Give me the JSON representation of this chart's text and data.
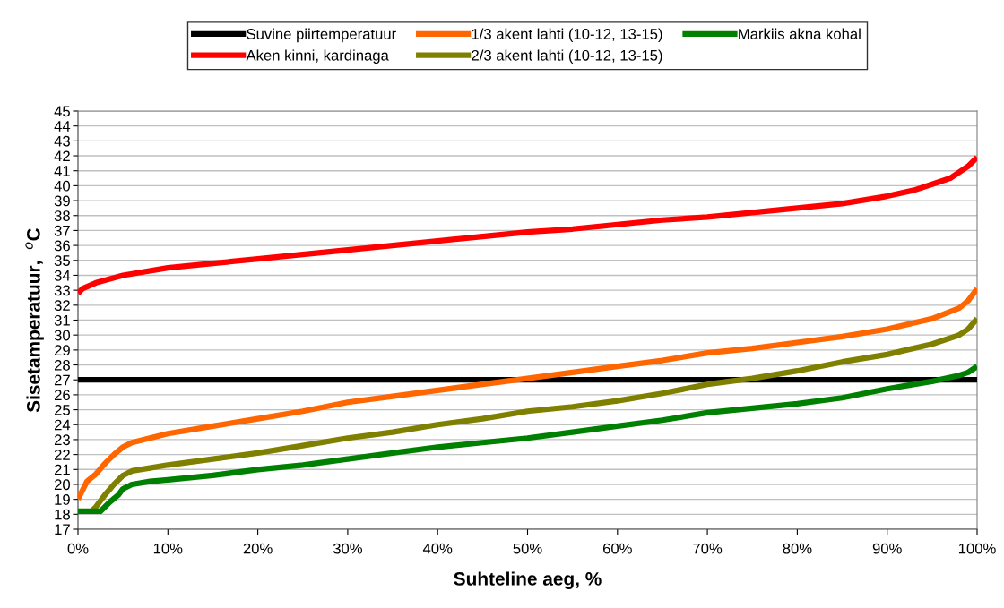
{
  "chart_data": {
    "type": "line",
    "xlabel": "Suhteline aeg, %",
    "ylabel": "Sisetamperatuur,  $^{o}$C",
    "xlim": [
      0,
      100
    ],
    "ylim": [
      17,
      45
    ],
    "xticks": [
      {
        "value": 0,
        "label": "0%"
      },
      {
        "value": 10,
        "label": "10%"
      },
      {
        "value": 20,
        "label": "20%"
      },
      {
        "value": 30,
        "label": "30%"
      },
      {
        "value": 40,
        "label": "40%"
      },
      {
        "value": 50,
        "label": "50%"
      },
      {
        "value": 60,
        "label": "60%"
      },
      {
        "value": 70,
        "label": "70%"
      },
      {
        "value": 80,
        "label": "80%"
      },
      {
        "value": 90,
        "label": "90%"
      },
      {
        "value": 100,
        "label": "100%"
      }
    ],
    "yticks": [
      17,
      18,
      19,
      20,
      21,
      22,
      23,
      24,
      25,
      26,
      27,
      28,
      29,
      30,
      31,
      32,
      33,
      34,
      35,
      36,
      37,
      38,
      39,
      40,
      41,
      42,
      43,
      44,
      45
    ],
    "grid": "y",
    "legend": "top",
    "line_style": "solid",
    "marker": "none",
    "series": [
      {
        "name": "Suvine piirtemperatuur",
        "color": "#000000",
        "x": [
          0,
          100
        ],
        "values": [
          27,
          27
        ]
      },
      {
        "name": "Aken kinni, kardinaga",
        "color": "#ff0000",
        "x": [
          0,
          0.5,
          2,
          5,
          10,
          15,
          20,
          25,
          30,
          35,
          40,
          45,
          50,
          55,
          60,
          65,
          70,
          75,
          80,
          85,
          90,
          93,
          95,
          97,
          98,
          99,
          100
        ],
        "values": [
          32.8,
          33.1,
          33.5,
          34.0,
          34.5,
          34.8,
          35.1,
          35.4,
          35.7,
          36.0,
          36.3,
          36.6,
          36.9,
          37.1,
          37.4,
          37.7,
          37.9,
          38.2,
          38.5,
          38.8,
          39.3,
          39.7,
          40.1,
          40.5,
          40.9,
          41.3,
          41.9
        ]
      },
      {
        "name": "1/3 akent lahti (10-12, 13-15)",
        "color": "#ff6600",
        "x": [
          0,
          0.5,
          1,
          2,
          3,
          4,
          5,
          6,
          8,
          10,
          15,
          20,
          25,
          30,
          35,
          40,
          45,
          50,
          55,
          60,
          65,
          70,
          75,
          80,
          85,
          90,
          95,
          98,
          99,
          100
        ],
        "values": [
          19.0,
          19.6,
          20.2,
          20.7,
          21.4,
          22.0,
          22.5,
          22.8,
          23.1,
          23.4,
          23.9,
          24.4,
          24.9,
          25.5,
          25.9,
          26.3,
          26.7,
          27.1,
          27.5,
          27.9,
          28.3,
          28.8,
          29.1,
          29.5,
          29.9,
          30.4,
          31.1,
          31.8,
          32.3,
          33.1
        ]
      },
      {
        "name": "2/3 akent lahti (10-12, 13-15)",
        "color": "#808000",
        "x": [
          1.5,
          2,
          3,
          4,
          5,
          6,
          8,
          10,
          15,
          20,
          25,
          30,
          35,
          40,
          45,
          50,
          55,
          60,
          65,
          70,
          75,
          80,
          85,
          90,
          95,
          98,
          99,
          100
        ],
        "values": [
          18.2,
          18.5,
          19.3,
          20.0,
          20.6,
          20.9,
          21.1,
          21.3,
          21.7,
          22.1,
          22.6,
          23.1,
          23.5,
          24.0,
          24.4,
          24.9,
          25.2,
          25.6,
          26.1,
          26.7,
          27.1,
          27.6,
          28.2,
          28.7,
          29.4,
          30.0,
          30.4,
          31.1
        ]
      },
      {
        "name": "Markiis akna kohal",
        "color": "#008000",
        "x": [
          0,
          2.5,
          3.5,
          4.5,
          5,
          6,
          8,
          10,
          15,
          20,
          25,
          30,
          35,
          40,
          45,
          50,
          55,
          60,
          65,
          70,
          75,
          80,
          85,
          90,
          95,
          98,
          99,
          100
        ],
        "values": [
          18.2,
          18.2,
          18.8,
          19.3,
          19.7,
          20.0,
          20.2,
          20.3,
          20.6,
          21.0,
          21.3,
          21.7,
          22.1,
          22.5,
          22.8,
          23.1,
          23.5,
          23.9,
          24.3,
          24.8,
          25.1,
          25.4,
          25.8,
          26.4,
          26.9,
          27.3,
          27.5,
          27.9
        ]
      }
    ]
  }
}
